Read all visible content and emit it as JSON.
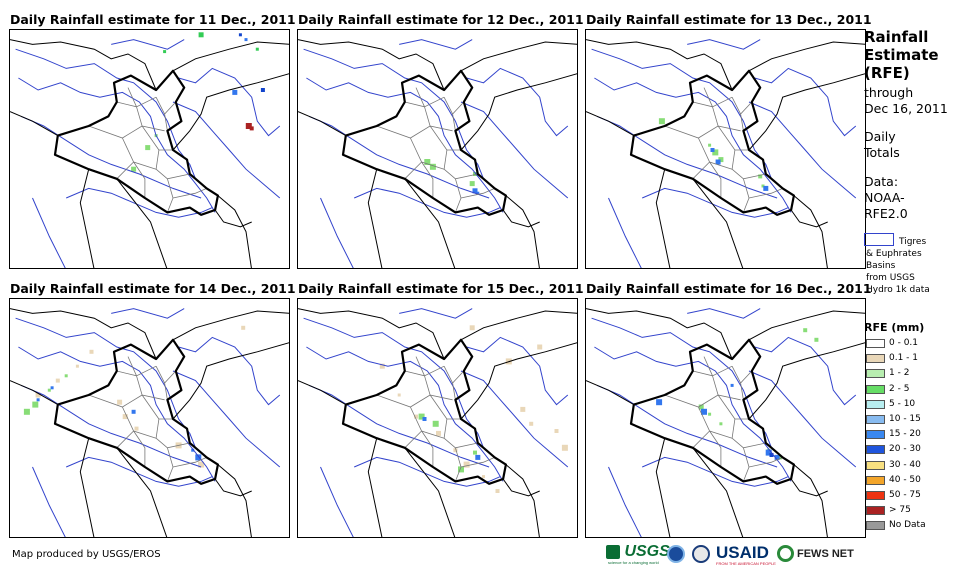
{
  "panels": [
    {
      "title": "Daily Rainfall estimate for 11 Dec., 2011",
      "rain": [
        {
          "c": "#33cc55",
          "p": [
            [
              88,
              8
            ],
            [
              55,
              9
            ],
            [
              68,
              2
            ]
          ]
        },
        {
          "c": "#3377ee",
          "p": [
            [
              80,
              26
            ],
            [
              84,
              4
            ],
            [
              112,
              17
            ]
          ]
        },
        {
          "c": "#1144cc",
          "p": [
            [
              90,
              25
            ],
            [
              82,
              2
            ],
            [
              115,
              24
            ]
          ]
        },
        {
          "c": "#ffffff",
          "p": [
            [
              46,
              1
            ],
            [
              14,
              5
            ],
            [
              40,
              4
            ]
          ]
        },
        {
          "c": "#aa2222",
          "p": [
            [
              86,
              41
            ],
            [
              85,
              40
            ]
          ]
        },
        {
          "c": "#88dd77",
          "p": [
            [
              52,
              44
            ],
            [
              49,
              49
            ],
            [
              44,
              58
            ]
          ]
        }
      ]
    },
    {
      "title": "Daily Rainfall estimate for 12 Dec., 2011",
      "rain": [
        {
          "c": "#88dd77",
          "p": [
            [
              46,
              55
            ],
            [
              48,
              57
            ],
            [
              63,
              60
            ],
            [
              62,
              64
            ]
          ]
        },
        {
          "c": "#3377ee",
          "p": [
            [
              63,
              67
            ],
            [
              64,
              68
            ]
          ]
        }
      ]
    },
    {
      "title": "Daily Rainfall estimate for 13 Dec., 2011",
      "rain": [
        {
          "c": "#88dd77",
          "p": [
            [
              44,
              48
            ],
            [
              46,
              51
            ],
            [
              48,
              54
            ],
            [
              62,
              61
            ],
            [
              63,
              65
            ],
            [
              27,
              38
            ]
          ]
        },
        {
          "c": "#3377ee",
          "p": [
            [
              45,
              50
            ],
            [
              47,
              55
            ],
            [
              64,
              66
            ]
          ]
        }
      ]
    },
    {
      "title": "Daily Rainfall estimate for 14 Dec., 2011",
      "rain": [
        {
          "c": "#e9d7b8",
          "p": [
            [
              10,
              40
            ],
            [
              17,
              34
            ],
            [
              24,
              28
            ],
            [
              29,
              22
            ],
            [
              39,
              43
            ],
            [
              41,
              49
            ],
            [
              45,
              54
            ],
            [
              60,
              61
            ],
            [
              68,
              69
            ],
            [
              83,
              12
            ]
          ]
        },
        {
          "c": "#88dd77",
          "p": [
            [
              6,
              47
            ],
            [
              9,
              44
            ],
            [
              14,
              38
            ],
            [
              20,
              32
            ]
          ]
        },
        {
          "c": "#3377ee",
          "p": [
            [
              10,
              42
            ],
            [
              15,
              37
            ],
            [
              44,
              47
            ],
            [
              65,
              63
            ],
            [
              67,
              66
            ]
          ]
        }
      ]
    },
    {
      "title": "Daily Rainfall estimate for 15 Dec., 2011",
      "rain": [
        {
          "c": "#e9d7b8",
          "p": [
            [
              30,
              28
            ],
            [
              36,
              40
            ],
            [
              42,
              49
            ],
            [
              50,
              56
            ],
            [
              56,
              63
            ],
            [
              60,
              69
            ],
            [
              66,
              74
            ],
            [
              71,
              80
            ],
            [
              92,
              55
            ],
            [
              95,
              62
            ],
            [
              80,
              46
            ],
            [
              83,
              52
            ],
            [
              62,
              12
            ],
            [
              75,
              26
            ],
            [
              86,
              20
            ]
          ]
        },
        {
          "c": "#88dd77",
          "p": [
            [
              44,
              49
            ],
            [
              49,
              52
            ],
            [
              63,
              64
            ],
            [
              58,
              71
            ]
          ]
        },
        {
          "c": "#3377ee",
          "p": [
            [
              45,
              50
            ],
            [
              64,
              66
            ]
          ]
        }
      ]
    },
    {
      "title": "Daily Rainfall estimate for 16 Dec., 2011",
      "rain": [
        {
          "c": "#88dd77",
          "p": [
            [
              41,
              45
            ],
            [
              44,
              48
            ],
            [
              48,
              52
            ],
            [
              65,
              63
            ],
            [
              69,
              66
            ],
            [
              78,
              13
            ],
            [
              82,
              17
            ]
          ]
        },
        {
          "c": "#3377ee",
          "p": [
            [
              42,
              47
            ],
            [
              65,
              64
            ],
            [
              68,
              66
            ],
            [
              26,
              43
            ],
            [
              52,
              36
            ]
          ]
        },
        {
          "c": "#1144cc",
          "p": [
            [
              66,
              65
            ]
          ]
        }
      ]
    }
  ],
  "side": {
    "title_lines": [
      "Rainfall",
      "Estimate",
      "(RFE)"
    ],
    "through": "through",
    "date": "Dec 16, 2011",
    "daily": "Daily",
    "totals": "Totals",
    "data_label": "Data:",
    "source1": "NOAA-",
    "source2": "RFE2.0",
    "basin_lines": [
      "Tigres",
      "& Euphrates",
      "Basins",
      "from USGS",
      "Hydro 1k data"
    ],
    "legend_title": "RFE (mm)"
  },
  "legend": [
    {
      "label": "0 - 0.1",
      "color": "#ffffff"
    },
    {
      "label": "0.1 - 1",
      "color": "#e9d7b8"
    },
    {
      "label": "1 - 2",
      "color": "#b8eeb0"
    },
    {
      "label": "2 - 5",
      "color": "#66dd66"
    },
    {
      "label": "5 - 10",
      "color": "#b8eef0"
    },
    {
      "label": "10 - 15",
      "color": "#88bbf0"
    },
    {
      "label": "15 - 20",
      "color": "#3a88f0"
    },
    {
      "label": "20 - 30",
      "color": "#1f55dd"
    },
    {
      "label": "30 - 40",
      "color": "#f8e080"
    },
    {
      "label": "40 - 50",
      "color": "#f3a52a"
    },
    {
      "label": "50 - 75",
      "color": "#ee3311"
    },
    {
      "label": "> 75",
      "color": "#aa2222"
    },
    {
      "label": "No Data",
      "color": "#999999"
    }
  ],
  "footer": "Map produced by USGS/EROS",
  "logos": {
    "usgs": "USGS",
    "usgs_tagline": "science for a changing world",
    "usaid": "USAID",
    "usaid_tagline": "FROM THE AMERICAN PEOPLE",
    "fews": "FEWS NET"
  },
  "colors": {
    "country": "#000000",
    "province": "#777777",
    "river": "#3344cc"
  }
}
